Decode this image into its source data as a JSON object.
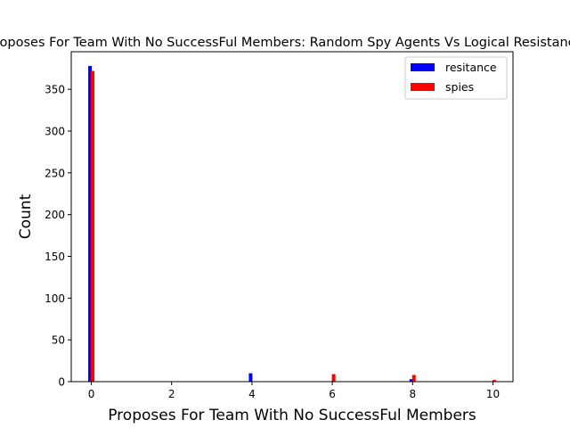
{
  "chart_data": {
    "type": "bar",
    "title": "Proposes For Team With No SuccessFul Members: Random Spy Agents Vs Logical Resistance",
    "xlabel": "Proposes For Team With No SuccessFul Members",
    "ylabel": "Count",
    "xlim": [
      -0.5,
      10.5
    ],
    "ylim": [
      0,
      395
    ],
    "xticks": [
      0,
      2,
      4,
      6,
      8,
      10
    ],
    "yticks": [
      0,
      50,
      100,
      150,
      200,
      250,
      300,
      350
    ],
    "legend_position": "top-right",
    "grid": false,
    "series": [
      {
        "name": "resitance",
        "color": "#0000ff",
        "points": [
          {
            "x": 0,
            "y": 378
          },
          {
            "x": 4,
            "y": 10
          },
          {
            "x": 6,
            "y": 0
          },
          {
            "x": 8,
            "y": 3
          },
          {
            "x": 10,
            "y": 0
          }
        ]
      },
      {
        "name": "spies",
        "color": "#ff0000",
        "points": [
          {
            "x": 0,
            "y": 372
          },
          {
            "x": 4,
            "y": 0
          },
          {
            "x": 6,
            "y": 9
          },
          {
            "x": 8,
            "y": 8
          },
          {
            "x": 10,
            "y": 2
          }
        ]
      }
    ]
  }
}
